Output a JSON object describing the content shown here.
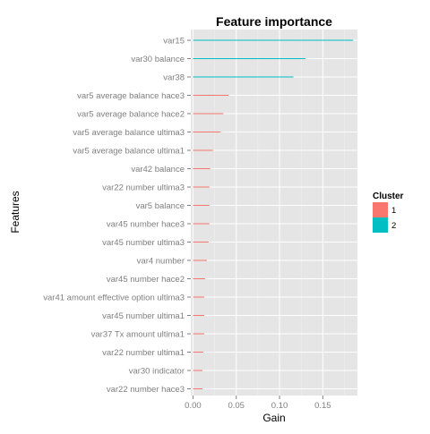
{
  "chart_data": {
    "type": "bar",
    "orientation": "horizontal",
    "title": "Feature importance",
    "xlabel": "Gain",
    "ylabel": "Features",
    "xlim": [
      -0.0025,
      0.19
    ],
    "xticks": [
      0.0,
      0.05,
      0.1,
      0.15
    ],
    "xtick_labels": [
      "0.00",
      "0.05",
      "0.10",
      "0.15"
    ],
    "grid": true,
    "legend": {
      "title": "Cluster",
      "placement": "right",
      "entries": [
        {
          "label": "1",
          "color": "#F8766D"
        },
        {
          "label": "2",
          "color": "#00BFC4"
        }
      ]
    },
    "categories": [
      "var15",
      "var30 balance",
      "var38",
      "var5 average balance hace3",
      "var5 average balance hace2",
      "var5 average balance ultima3",
      "var5 average balance ultima1",
      "var42 balance",
      "var22 number ultima3",
      "var5 balance",
      "var45 number hace3",
      "var45 number ultima3",
      "var4 number",
      "var45 number hace2",
      "var41 amount effective option ultima3",
      "var45 number ultima1",
      "var37 Tx amount ultima1",
      "var22 number ultima1",
      "var30 indicator",
      "var22 number hace3"
    ],
    "values": [
      0.185,
      0.13,
      0.116,
      0.041,
      0.035,
      0.032,
      0.023,
      0.02,
      0.019,
      0.019,
      0.019,
      0.018,
      0.016,
      0.014,
      0.013,
      0.013,
      0.013,
      0.012,
      0.011,
      0.011
    ],
    "cluster": [
      "2",
      "2",
      "2",
      "1",
      "1",
      "1",
      "1",
      "1",
      "1",
      "1",
      "1",
      "1",
      "1",
      "1",
      "1",
      "1",
      "1",
      "1",
      "1",
      "1"
    ]
  }
}
